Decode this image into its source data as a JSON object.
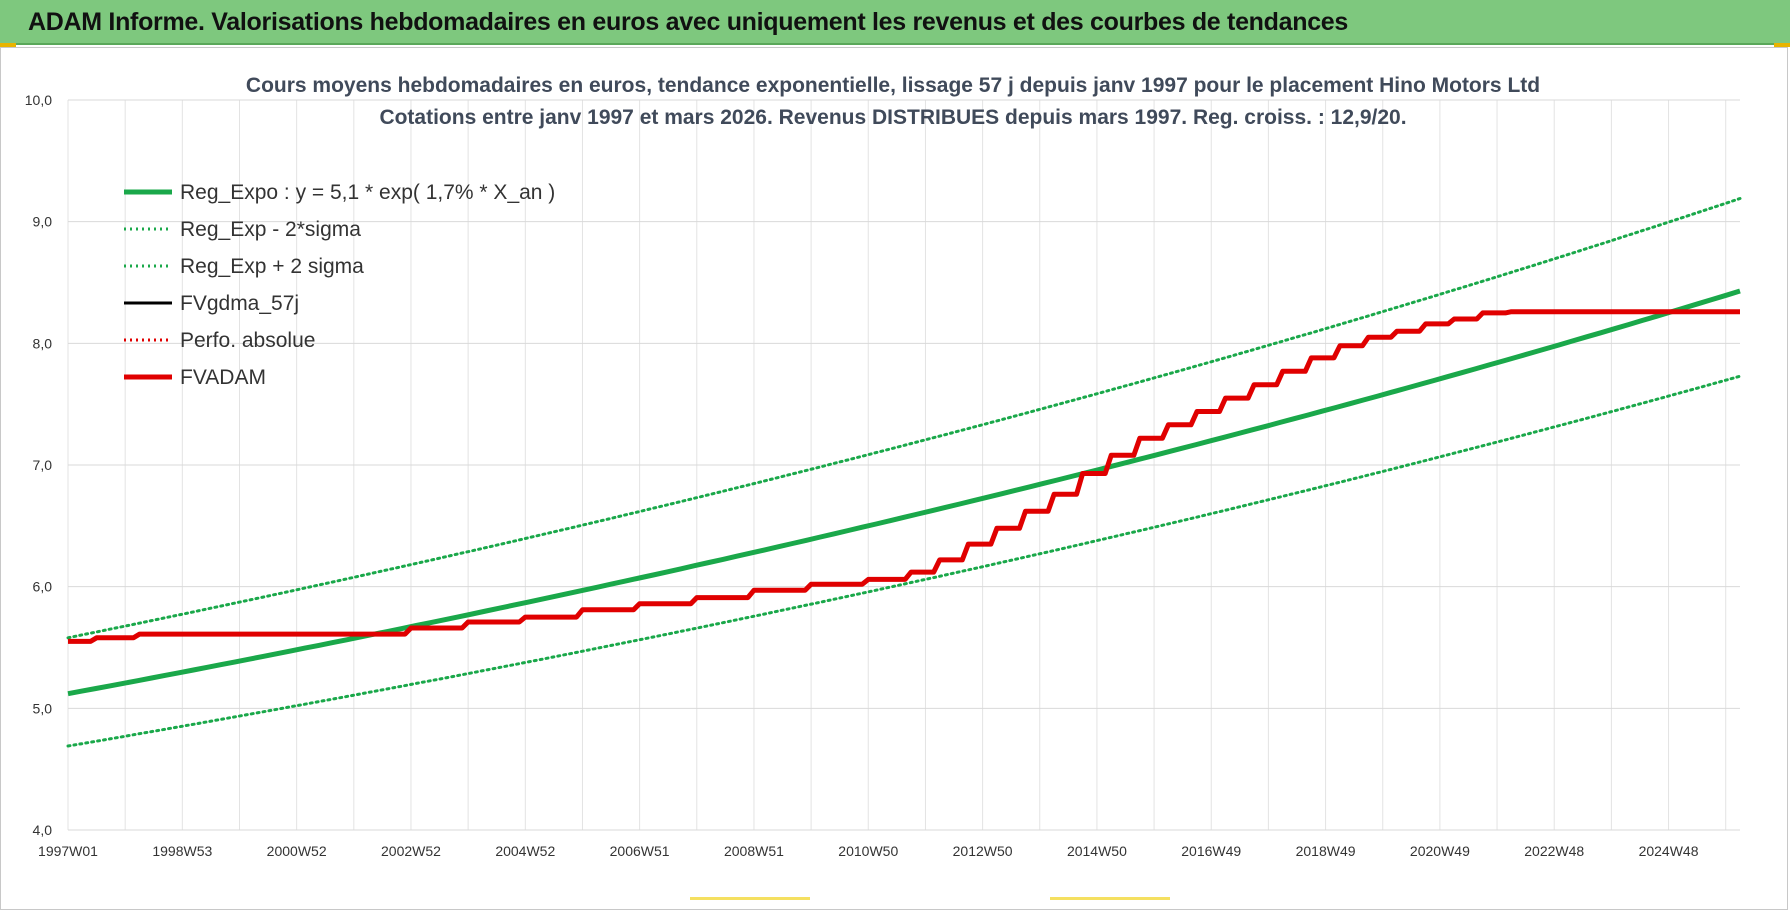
{
  "header": {
    "title": "ADAM Informe. Valorisations hebdomadaires en euros avec uniquement les revenus et des courbes de tendances"
  },
  "colors": {
    "header_bg": "#7ec87e",
    "reg_green": "#1aa84a",
    "red": "#e00000",
    "black": "#000000",
    "grid": "#d9d9d9"
  },
  "chart_data": {
    "type": "line",
    "title_line1": "Cours moyens hebdomadaires en euros, tendance exponentielle, lissage 57 j depuis janv 1997 pour le placement Hino Motors Ltd",
    "title_line2": "Cotations entre janv 1997 et mars 2026. Revenus DISTRIBUES depuis mars 1997. Reg. croiss. : 12,9/20.",
    "ylim": [
      4.0,
      10.0
    ],
    "yticks": [
      "4,0",
      "5,0",
      "6,0",
      "7,0",
      "8,0",
      "9,0",
      "10,0"
    ],
    "xlim": [
      1997.0,
      2026.25
    ],
    "xticks": [
      {
        "label": "1997W01",
        "x": 1997.0
      },
      {
        "label": "1998W53",
        "x": 1999.0
      },
      {
        "label": "2000W52",
        "x": 2001.0
      },
      {
        "label": "2002W52",
        "x": 2003.0
      },
      {
        "label": "2004W52",
        "x": 2005.0
      },
      {
        "label": "2006W51",
        "x": 2007.0
      },
      {
        "label": "2008W51",
        "x": 2009.0
      },
      {
        "label": "2010W50",
        "x": 2011.0
      },
      {
        "label": "2012W50",
        "x": 2013.0
      },
      {
        "label": "2014W50",
        "x": 2015.0
      },
      {
        "label": "2016W49",
        "x": 2017.0
      },
      {
        "label": "2018W49",
        "x": 2019.0
      },
      {
        "label": "2020W49",
        "x": 2021.0
      },
      {
        "label": "2022W48",
        "x": 2023.0
      },
      {
        "label": "2024W48",
        "x": 2025.0
      }
    ],
    "legend": [
      {
        "name": "Reg_Expo : y = 5,1 * exp( 1,7% *  X_an )",
        "color": "#1aa84a",
        "style": "solid-thick"
      },
      {
        "name": "Reg_Exp - 2*sigma",
        "color": "#1aa84a",
        "style": "dotted"
      },
      {
        "name": "Reg_Exp + 2 sigma",
        "color": "#1aa84a",
        "style": "dotted"
      },
      {
        "name": "FVgdma_57j",
        "color": "#000000",
        "style": "solid"
      },
      {
        "name": "Perfo. absolue",
        "color": "#e00000",
        "style": "dotted"
      },
      {
        "name": "FVADAM",
        "color": "#e00000",
        "style": "solid-thick"
      }
    ],
    "series": [
      {
        "name": "Reg_Expo : y = 5,1 * exp( 1,7% *  X_an )",
        "x": [
          1997.0,
          2026.25
        ],
        "values": [
          5.12,
          8.43
        ]
      },
      {
        "name": "Reg_Exp - 2*sigma",
        "x": [
          1997.0,
          2026.25
        ],
        "values": [
          4.69,
          7.73
        ]
      },
      {
        "name": "Reg_Exp + 2 sigma",
        "x": [
          1997.0,
          2026.25
        ],
        "values": [
          5.58,
          9.19
        ]
      },
      {
        "name": "FVADAM",
        "x": [
          1997.0,
          1997.5,
          1998.25,
          2001.5,
          2003.0,
          2004.0,
          2005.0,
          2006.0,
          2007.0,
          2008.0,
          2009.0,
          2010.0,
          2011.0,
          2011.75,
          2012.25,
          2012.75,
          2013.25,
          2013.75,
          2014.25,
          2014.75,
          2015.25,
          2015.75,
          2016.25,
          2016.75,
          2017.25,
          2017.75,
          2018.25,
          2018.75,
          2019.25,
          2019.75,
          2020.25,
          2020.75,
          2021.25,
          2021.75,
          2022.25,
          2023.0,
          2026.25
        ],
        "values": [
          5.55,
          5.58,
          5.61,
          5.61,
          5.66,
          5.71,
          5.75,
          5.81,
          5.86,
          5.91,
          5.97,
          6.02,
          6.06,
          6.12,
          6.22,
          6.35,
          6.48,
          6.62,
          6.76,
          6.93,
          7.08,
          7.22,
          7.33,
          7.44,
          7.55,
          7.66,
          7.77,
          7.88,
          7.98,
          8.05,
          8.1,
          8.16,
          8.2,
          8.25,
          8.26,
          8.26,
          8.26
        ]
      }
    ]
  }
}
